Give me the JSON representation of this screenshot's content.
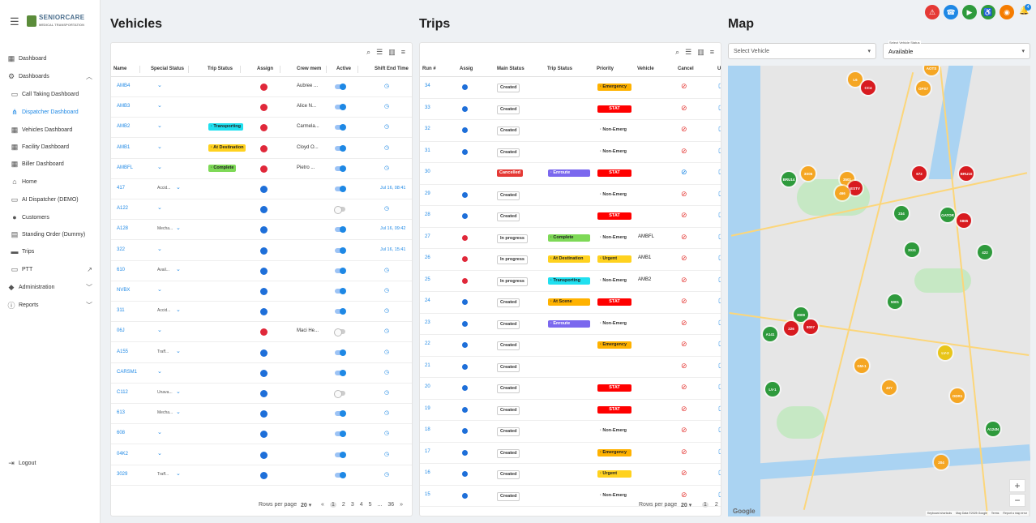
{
  "brand": {
    "name": "SENIORCARE",
    "sub": "MEDICAL TRANSPORTATION"
  },
  "nav": [
    {
      "label": "Dashboard",
      "icon": "dashboard-icon"
    },
    {
      "label": "Dashboards",
      "icon": "gear-icon"
    },
    {
      "label": "Call Taking Dashboard",
      "icon": "contact-card-icon"
    },
    {
      "label": "Dispatcher Dashboard",
      "icon": "network-icon"
    },
    {
      "label": "Vehicles Dashboard",
      "icon": "dashboard-icon"
    },
    {
      "label": "Facility Dashboard",
      "icon": "dashboard-icon"
    },
    {
      "label": "Biller Dashboard",
      "icon": "dashboard-icon"
    },
    {
      "label": "Home",
      "icon": "home-icon"
    },
    {
      "label": "AI Dispatcher (DEMO)",
      "icon": "contact-card-icon"
    },
    {
      "label": "Customers",
      "icon": "person-icon"
    },
    {
      "label": "Standing Order (Dummy)",
      "icon": "calendar-icon"
    },
    {
      "label": "Trips",
      "icon": "truck-icon"
    },
    {
      "label": "PTT",
      "icon": "contact-card-icon"
    },
    {
      "label": "Administration",
      "icon": "admin-icon"
    },
    {
      "label": "Reports",
      "icon": "info-icon"
    },
    {
      "label": "Logout",
      "icon": "logout-icon"
    }
  ],
  "vehicles": {
    "title": "Vehicles",
    "columns": [
      "Name",
      "Special Status",
      "Trip Status",
      "Assign",
      "Crew mem",
      "Active",
      "Shift End Time"
    ],
    "rows": [
      {
        "name": "AMB4",
        "special": "",
        "trip": "",
        "assign": "red",
        "crew": "Aubree ...",
        "active": true,
        "shift": ""
      },
      {
        "name": "AMB3",
        "special": "",
        "trip": "",
        "assign": "red",
        "crew": "Alice N...",
        "active": true,
        "shift": ""
      },
      {
        "name": "AMB2",
        "special": "",
        "trip": "Transporting",
        "assign": "red",
        "crew": "Carmela...",
        "active": true,
        "shift": ""
      },
      {
        "name": "AMB1",
        "special": "",
        "trip": "At Destination",
        "assign": "red",
        "crew": "Cloyd O...",
        "active": true,
        "shift": ""
      },
      {
        "name": "AMBFL",
        "special": "",
        "trip": "Complete",
        "assign": "red",
        "crew": "Pietro ...",
        "active": true,
        "shift": ""
      },
      {
        "name": "417",
        "special": "Accid...",
        "trip": "",
        "assign": "blue",
        "crew": "",
        "active": true,
        "shift": "Jul 16, 08:41"
      },
      {
        "name": "A122",
        "special": "",
        "trip": "",
        "assign": "blue",
        "crew": "",
        "active": false,
        "shift": ""
      },
      {
        "name": "A128",
        "special": "Mecha...",
        "trip": "",
        "assign": "blue",
        "crew": "",
        "active": true,
        "shift": "Jul 16, 09:42"
      },
      {
        "name": "322",
        "special": "",
        "trip": "",
        "assign": "blue",
        "crew": "",
        "active": true,
        "shift": "Jul 16, 15:41"
      },
      {
        "name": "610",
        "special": "Avail...",
        "trip": "",
        "assign": "blue",
        "crew": "",
        "active": true,
        "shift": ""
      },
      {
        "name": "NVBX",
        "special": "",
        "trip": "",
        "assign": "blue",
        "crew": "",
        "active": true,
        "shift": ""
      },
      {
        "name": "311",
        "special": "Accid...",
        "trip": "",
        "assign": "blue",
        "crew": "",
        "active": true,
        "shift": ""
      },
      {
        "name": "06J",
        "special": "",
        "trip": "",
        "assign": "red",
        "crew": "Maci He...",
        "active": false,
        "shift": ""
      },
      {
        "name": "A155",
        "special": "Traff...",
        "trip": "",
        "assign": "blue",
        "crew": "",
        "active": true,
        "shift": ""
      },
      {
        "name": "CARSM1",
        "special": "",
        "trip": "",
        "assign": "blue",
        "crew": "",
        "active": true,
        "shift": ""
      },
      {
        "name": "C112",
        "special": "Unava...",
        "trip": "",
        "assign": "blue",
        "crew": "",
        "active": false,
        "shift": ""
      },
      {
        "name": "613",
        "special": "Mecha...",
        "trip": "",
        "assign": "blue",
        "crew": "",
        "active": true,
        "shift": ""
      },
      {
        "name": "608",
        "special": "",
        "trip": "",
        "assign": "blue",
        "crew": "",
        "active": true,
        "shift": ""
      },
      {
        "name": "04K2",
        "special": "",
        "trip": "",
        "assign": "blue",
        "crew": "",
        "active": true,
        "shift": ""
      },
      {
        "name": "3029",
        "special": "Traff...",
        "trip": "",
        "assign": "blue",
        "crew": "",
        "active": true,
        "shift": ""
      }
    ],
    "footer": {
      "rows_label": "Rows per page",
      "rows_value": "20",
      "pages": [
        "1",
        "2",
        "3",
        "4",
        "5",
        "...",
        "36"
      ]
    }
  },
  "trips": {
    "title": "Trips",
    "columns": [
      "Run #",
      "Assig",
      "Main Status",
      "Trip Status",
      "Priority",
      "Vehicle",
      "Cancel",
      "Ur"
    ],
    "rows": [
      {
        "run": "34",
        "assign": "blue",
        "main": "Created",
        "trip": "",
        "priority": "Emergency",
        "vehicle": ""
      },
      {
        "run": "33",
        "assign": "blue",
        "main": "Created",
        "trip": "",
        "priority": "STAT",
        "vehicle": ""
      },
      {
        "run": "32",
        "assign": "blue",
        "main": "Created",
        "trip": "",
        "priority": "Non-Emerg",
        "vehicle": ""
      },
      {
        "run": "31",
        "assign": "blue",
        "main": "Created",
        "trip": "",
        "priority": "Non-Emerg",
        "vehicle": ""
      },
      {
        "run": "30",
        "assign": "",
        "main": "Cancelled",
        "trip": "Enroute",
        "priority": "STAT",
        "vehicle": ""
      },
      {
        "run": "29",
        "assign": "blue",
        "main": "Created",
        "trip": "",
        "priority": "Non-Emerg",
        "vehicle": ""
      },
      {
        "run": "28",
        "assign": "blue",
        "main": "Created",
        "trip": "",
        "priority": "STAT",
        "vehicle": ""
      },
      {
        "run": "27",
        "assign": "red",
        "main": "In progress",
        "trip": "Complete",
        "priority": "Non-Emerg",
        "vehicle": "AMBFL"
      },
      {
        "run": "26",
        "assign": "red",
        "main": "In progress",
        "trip": "At Destination",
        "priority": "Urgent",
        "vehicle": "AMB1"
      },
      {
        "run": "25",
        "assign": "red",
        "main": "In progress",
        "trip": "Transporting",
        "priority": "Non-Emerg",
        "vehicle": "AMB2"
      },
      {
        "run": "24",
        "assign": "blue",
        "main": "Created",
        "trip": "At Scene",
        "priority": "STAT",
        "vehicle": ""
      },
      {
        "run": "23",
        "assign": "blue",
        "main": "Created",
        "trip": "Enroute",
        "priority": "Non-Emerg",
        "vehicle": ""
      },
      {
        "run": "22",
        "assign": "blue",
        "main": "Created",
        "trip": "",
        "priority": "Emergency",
        "vehicle": ""
      },
      {
        "run": "21",
        "assign": "blue",
        "main": "Created",
        "trip": "",
        "priority": "",
        "vehicle": ""
      },
      {
        "run": "20",
        "assign": "blue",
        "main": "Created",
        "trip": "",
        "priority": "STAT",
        "vehicle": ""
      },
      {
        "run": "19",
        "assign": "blue",
        "main": "Created",
        "trip": "",
        "priority": "STAT",
        "vehicle": ""
      },
      {
        "run": "18",
        "assign": "blue",
        "main": "Created",
        "trip": "",
        "priority": "Non-Emerg",
        "vehicle": ""
      },
      {
        "run": "17",
        "assign": "blue",
        "main": "Created",
        "trip": "",
        "priority": "Emergency",
        "vehicle": ""
      },
      {
        "run": "16",
        "assign": "blue",
        "main": "Created",
        "trip": "",
        "priority": "Urgent",
        "vehicle": ""
      },
      {
        "run": "15",
        "assign": "blue",
        "main": "Created",
        "trip": "",
        "priority": "Non-Emerg",
        "vehicle": ""
      }
    ],
    "footer": {
      "rows_label": "Rows per page",
      "rows_value": "20",
      "pages": [
        "1",
        "2"
      ]
    }
  },
  "map": {
    "title": "Map",
    "vehicle_placeholder": "Select Vehicle",
    "status_label": "Select Vehicle Status",
    "status_value": "Available",
    "attribution": [
      "Keyboard shortcuts",
      "Map Data ©2025 Google",
      "Terms",
      "Report a map error"
    ],
    "google": "Google",
    "markers": [
      {
        "label": "L6",
        "c": "o"
      },
      {
        "label": "CC4",
        "c": "r"
      },
      {
        "label": "OPS7",
        "c": "o"
      },
      {
        "label": "AOTS",
        "c": "o"
      },
      {
        "label": "BRU14",
        "c": "g"
      },
      {
        "label": "3S05",
        "c": "o"
      },
      {
        "label": "3501",
        "c": "o"
      },
      {
        "label": "ESTV",
        "c": "r"
      },
      {
        "label": "466",
        "c": "o"
      },
      {
        "label": "672",
        "c": "r"
      },
      {
        "label": "BRU10",
        "c": "r"
      },
      {
        "label": "234",
        "c": "g"
      },
      {
        "label": "GATOR",
        "c": "g"
      },
      {
        "label": "S885",
        "c": "r"
      },
      {
        "label": "3031",
        "c": "g"
      },
      {
        "label": "422",
        "c": "g"
      },
      {
        "label": "5001",
        "c": "g"
      },
      {
        "label": "3009",
        "c": "g"
      },
      {
        "label": "A141",
        "c": "g"
      },
      {
        "label": "226",
        "c": "r"
      },
      {
        "label": "8007",
        "c": "r"
      },
      {
        "label": "LV-2",
        "c": "y"
      },
      {
        "label": "GM-1",
        "c": "o"
      },
      {
        "label": "40Y",
        "c": "o"
      },
      {
        "label": "LV-1",
        "c": "g"
      },
      {
        "label": "ODR1",
        "c": "o"
      },
      {
        "label": "A124N",
        "c": "g"
      },
      {
        "label": "204",
        "c": "o"
      }
    ]
  },
  "topbar": {
    "badge": "4"
  },
  "colors": {
    "accent": "#1e88e5"
  }
}
